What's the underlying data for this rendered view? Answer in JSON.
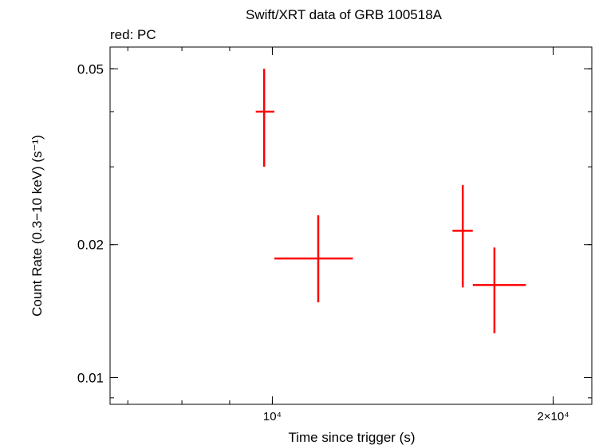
{
  "chart_data": {
    "type": "scatter",
    "title": "Swift/XRT data of GRB 100518A",
    "subtitle": "red: PC",
    "xlabel": "Time since trigger (s)",
    "ylabel": "Count Rate (0.3−10 keV) (s⁻¹)",
    "x_scale": "log",
    "y_scale": "log",
    "xlim": [
      6700,
      22000
    ],
    "ylim": [
      0.0087,
      0.056
    ],
    "x_ticks": [
      {
        "value": 10000,
        "label": "10⁴"
      },
      {
        "value": 20000,
        "label": "2×10⁴"
      }
    ],
    "y_ticks": [
      {
        "value": 0.01,
        "label": "0.01"
      },
      {
        "value": 0.02,
        "label": "0.02"
      },
      {
        "value": 0.05,
        "label": "0.05"
      }
    ],
    "grid": false,
    "series": [
      {
        "color": "#ff0000",
        "points": [
          {
            "x": 9800,
            "xlo": 9600,
            "xhi": 10050,
            "y": 0.04,
            "ylo": 0.03,
            "yhi": 0.05
          },
          {
            "x": 11200,
            "xlo": 10050,
            "xhi": 12200,
            "y": 0.0186,
            "ylo": 0.0148,
            "yhi": 0.0233
          },
          {
            "x": 16000,
            "xlo": 15600,
            "xhi": 16400,
            "y": 0.0215,
            "ylo": 0.016,
            "yhi": 0.0273
          },
          {
            "x": 17300,
            "xlo": 16400,
            "xhi": 18700,
            "y": 0.0162,
            "ylo": 0.0126,
            "yhi": 0.0197
          }
        ]
      }
    ]
  }
}
